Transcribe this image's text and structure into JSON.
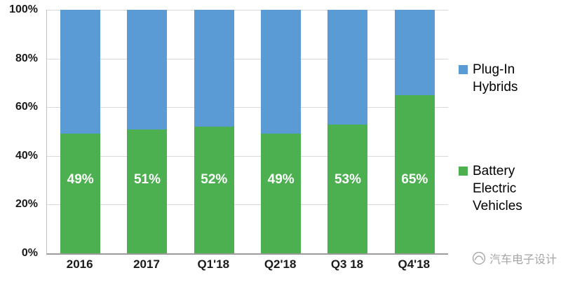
{
  "chart_data": {
    "type": "bar",
    "stacked": true,
    "percent_stacked": true,
    "title": "",
    "categories": [
      "2016",
      "2017",
      "Q1'18",
      "Q2'18",
      "Q3 18",
      "Q4'18"
    ],
    "series": [
      {
        "name": "Battery Electric Vehicles",
        "color": "#4caf50",
        "values": [
          49,
          51,
          52,
          49,
          53,
          65
        ]
      },
      {
        "name": "Plug-In Hybrids",
        "color": "#5b9bd5",
        "values": [
          51,
          49,
          48,
          51,
          47,
          35
        ]
      }
    ],
    "bar_labels": [
      "49%",
      "51%",
      "52%",
      "49%",
      "53%",
      "65%"
    ],
    "bar_label_color": "#ffffff",
    "xlabel": "",
    "ylabel": "",
    "ylim": [
      0,
      100
    ],
    "y_ticks": [
      "0%",
      "20%",
      "40%",
      "60%",
      "80%",
      "100%"
    ],
    "grid": true,
    "gridline_color": "#d9d9d9",
    "legend_position": "right"
  },
  "watermark": {
    "text": "汽车电子设计"
  }
}
